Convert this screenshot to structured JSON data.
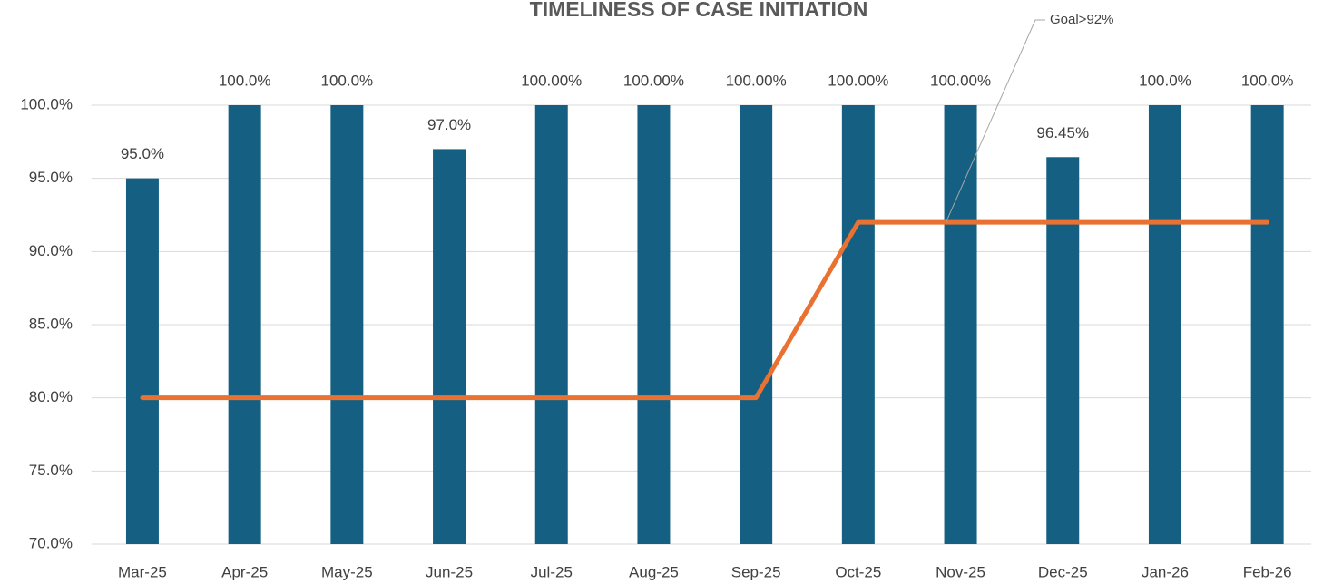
{
  "chart_data": {
    "type": "bar",
    "title": "TIMELINESS OF CASE INITIATION",
    "categories": [
      "Mar-25",
      "Apr-25",
      "May-25",
      "Jun-25",
      "Jul-25",
      "Aug-25",
      "Sep-25",
      "Oct-25",
      "Nov-25",
      "Dec-25",
      "Jan-26",
      "Feb-26"
    ],
    "series": [
      {
        "type": "bar",
        "color": "#156082",
        "values": [
          95,
          100,
          100,
          97,
          100,
          100,
          100,
          100,
          100,
          96.45,
          100,
          100
        ],
        "value_labels": [
          "95.0%",
          "100.0%",
          "100.0%",
          "97.0%",
          "100.00%",
          "100.00%",
          "100.00%",
          "100.00%",
          "100.00%",
          "96.45%",
          "100.0%",
          "100.0%"
        ]
      },
      {
        "type": "line",
        "color": "#e97132",
        "values": [
          80,
          80,
          80,
          80,
          80,
          80,
          80,
          92,
          92,
          92,
          92,
          92
        ]
      }
    ],
    "annotation": "Goal>92%",
    "ylim": [
      70,
      100
    ],
    "yticks": [
      {
        "value": 70,
        "label": "70.0%"
      },
      {
        "value": 75,
        "label": "75.0%"
      },
      {
        "value": 80,
        "label": "80.0%"
      },
      {
        "value": 85,
        "label": "85.0%"
      },
      {
        "value": 90,
        "label": "90.0%"
      },
      {
        "value": 95,
        "label": "95.0%"
      },
      {
        "value": 100,
        "label": "100.0%"
      }
    ],
    "grid": true
  }
}
